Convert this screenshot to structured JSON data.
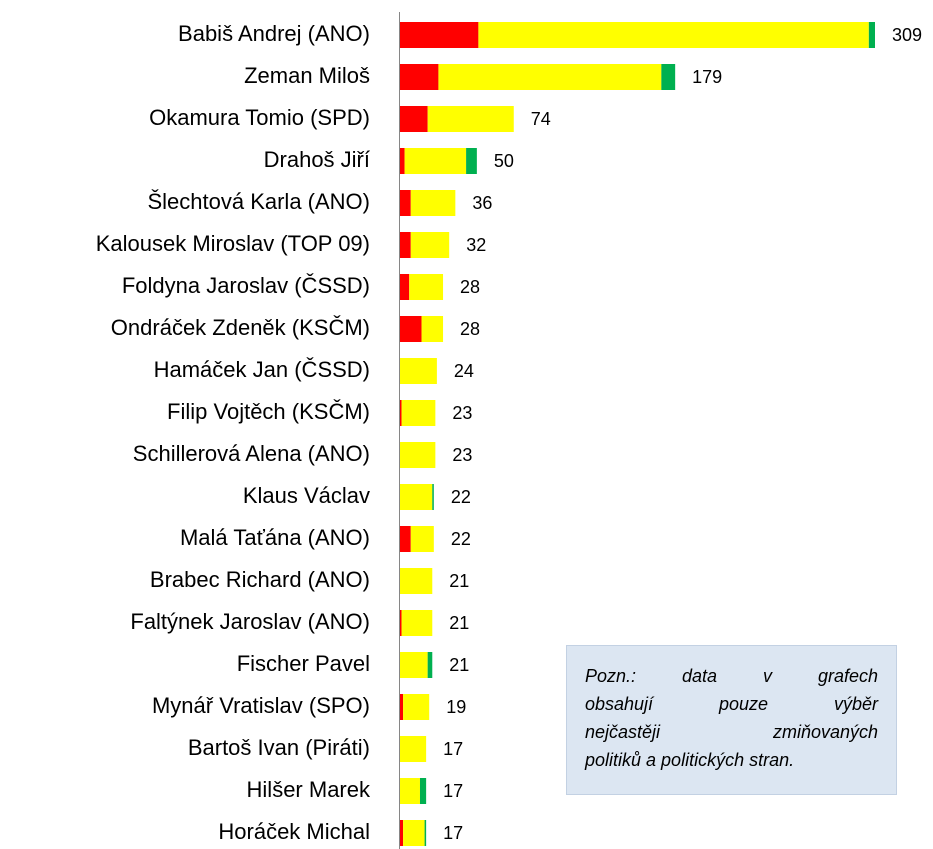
{
  "chart_data": {
    "type": "stacked-bar-horizontal",
    "categories": [
      "Babiš Andrej (ANO)",
      "Zeman Miloš",
      "Okamura Tomio (SPD)",
      "Drahoš Jiří",
      "Šlechtová Karla (ANO)",
      "Kalousek Miroslav (TOP 09)",
      "Foldyna Jaroslav (ČSSD)",
      "Ondráček Zdeněk (KSČM)",
      "Hamáček Jan (ČSSD)",
      "Filip Vojtěch (KSČM)",
      "Schillerová Alena (ANO)",
      "Klaus Václav",
      "Malá Taťána (ANO)",
      "Brabec Richard (ANO)",
      "Faltýnek Jaroslav (ANO)",
      "Fischer Pavel",
      "Mynář Vratislav (SPO)",
      "Bartoš Ivan (Piráti)",
      "Hilšer Marek",
      "Horáček Michal"
    ],
    "series": [
      {
        "color": "#ff0000",
        "values": [
          51,
          25,
          18,
          3,
          7,
          7,
          6,
          14,
          0,
          1,
          0,
          0,
          7,
          0,
          1,
          0,
          2,
          0,
          0,
          2
        ]
      },
      {
        "color": "#ffff00",
        "values": [
          254,
          145,
          56,
          40,
          29,
          25,
          22,
          14,
          24,
          22,
          23,
          21,
          15,
          21,
          20,
          18,
          17,
          17,
          13,
          14
        ]
      },
      {
        "color": "#00b050",
        "values": [
          4,
          9,
          0,
          7,
          0,
          0,
          0,
          0,
          0,
          0,
          0,
          1,
          0,
          0,
          0,
          3,
          0,
          0,
          4,
          1
        ]
      }
    ],
    "totals": [
      309,
      179,
      74,
      50,
      36,
      32,
      28,
      28,
      24,
      23,
      23,
      22,
      22,
      21,
      21,
      21,
      19,
      17,
      17,
      17
    ],
    "xlim": [
      0,
      309
    ],
    "note": [
      "Pozn.: data v grafech",
      "obsahují pouze výběr",
      "nejčastěji zmiňovaných",
      "politiků a politických stran."
    ]
  }
}
